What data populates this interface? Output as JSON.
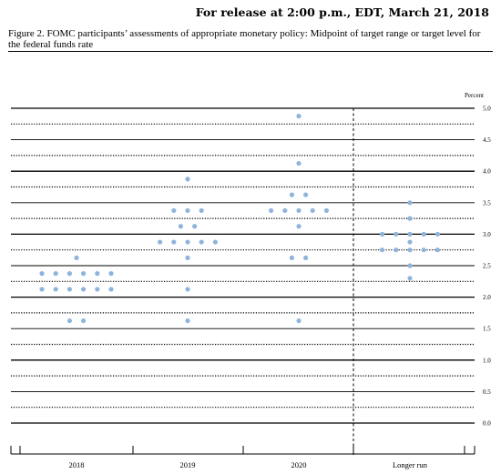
{
  "header": {
    "release_line": "For release at 2:00 p.m., EDT, March 21, 2018"
  },
  "caption": "Figure 2. FOMC participants’ assessments of appropriate monetary policy: Midpoint of target range or target level for the federal funds rate",
  "colors": {
    "dot": "#8fb4dc",
    "solid_grid": "#000000",
    "dotted_grid": "#000000"
  },
  "chart_data": {
    "type": "scatter",
    "title": "Figure 2. FOMC participants’ assessments of appropriate monetary policy: Midpoint of target range or target level for the federal funds rate",
    "ylabel": "Percent",
    "xlabel": "",
    "ylim": [
      0.0,
      5.0
    ],
    "y_ticks": [
      "0.0",
      "0.5",
      "1.0",
      "1.5",
      "2.0",
      "2.5",
      "3.0",
      "3.5",
      "4.0",
      "4.5",
      "5.0"
    ],
    "grid": true,
    "categories": [
      "2018",
      "2019",
      "2020",
      "Longer run"
    ],
    "points": [
      {
        "x": "2018",
        "y": 2.625,
        "count": 1
      },
      {
        "x": "2018",
        "y": 2.375,
        "count": 6
      },
      {
        "x": "2018",
        "y": 2.125,
        "count": 6
      },
      {
        "x": "2018",
        "y": 1.625,
        "count": 2
      },
      {
        "x": "2019",
        "y": 3.875,
        "count": 1
      },
      {
        "x": "2019",
        "y": 3.375,
        "count": 3
      },
      {
        "x": "2019",
        "y": 3.125,
        "count": 2
      },
      {
        "x": "2019",
        "y": 2.875,
        "count": 5
      },
      {
        "x": "2019",
        "y": 2.625,
        "count": 1
      },
      {
        "x": "2019",
        "y": 2.125,
        "count": 1
      },
      {
        "x": "2019",
        "y": 1.625,
        "count": 1
      },
      {
        "x": "2020",
        "y": 4.875,
        "count": 1
      },
      {
        "x": "2020",
        "y": 4.125,
        "count": 1
      },
      {
        "x": "2020",
        "y": 3.625,
        "count": 2
      },
      {
        "x": "2020",
        "y": 3.375,
        "count": 5
      },
      {
        "x": "2020",
        "y": 3.125,
        "count": 1
      },
      {
        "x": "2020",
        "y": 2.625,
        "count": 2
      },
      {
        "x": "2020",
        "y": 1.625,
        "count": 1
      },
      {
        "x": "Longer run",
        "y": 3.5,
        "count": 1
      },
      {
        "x": "Longer run",
        "y": 3.25,
        "count": 1
      },
      {
        "x": "Longer run",
        "y": 3.0,
        "count": 5
      },
      {
        "x": "Longer run",
        "y": 2.875,
        "count": 1
      },
      {
        "x": "Longer run",
        "y": 2.75,
        "count": 5
      },
      {
        "x": "Longer run",
        "y": 2.5,
        "count": 1
      },
      {
        "x": "Longer run",
        "y": 2.3,
        "count": 1
      }
    ]
  }
}
